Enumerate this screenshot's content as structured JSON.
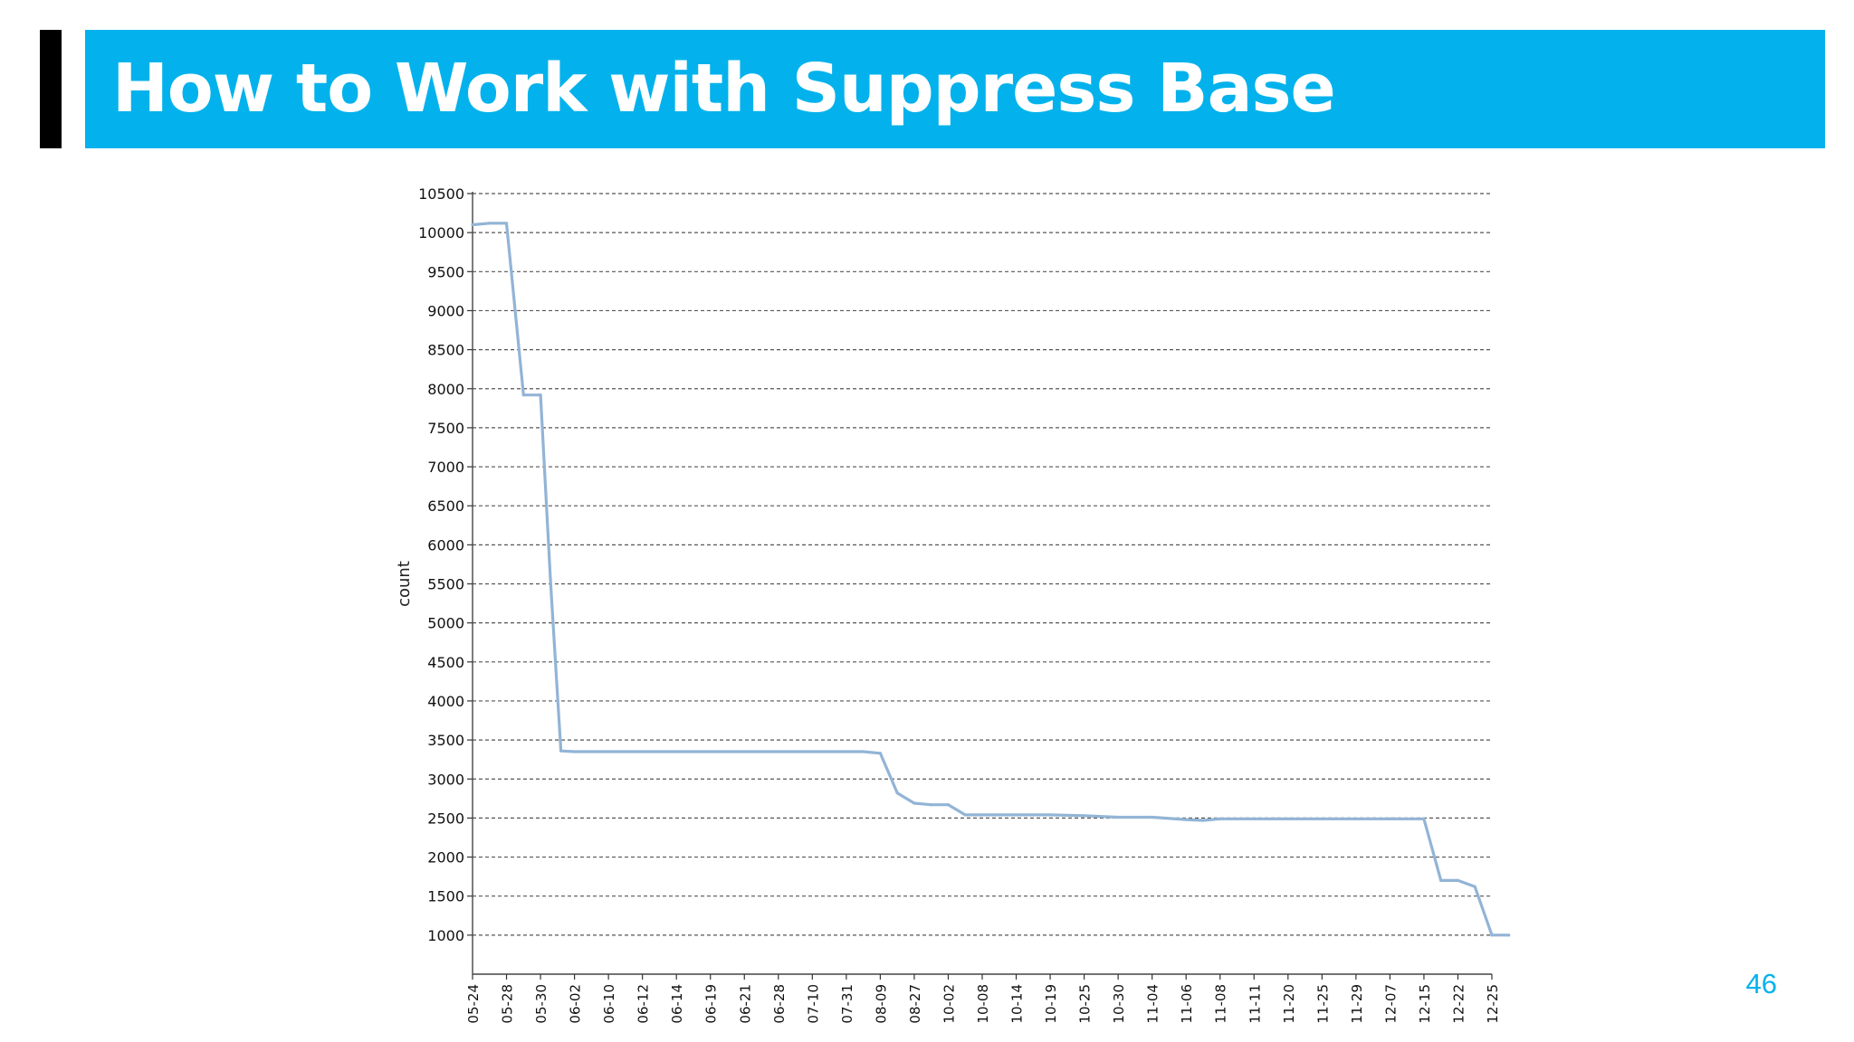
{
  "slide": {
    "title": "How to Work with Suppress Base",
    "page_number": "46"
  },
  "colors": {
    "banner": "#03b2ec",
    "accent_bar": "#000000",
    "line": "#92b4d6",
    "grid": "#555555"
  },
  "chart_data": {
    "type": "line",
    "title": "",
    "xlabel": "",
    "ylabel": "count",
    "ylim": [
      500,
      10500
    ],
    "yticks": [
      1000,
      1500,
      2000,
      2500,
      3000,
      3500,
      4000,
      4500,
      5000,
      5500,
      6000,
      6500,
      7000,
      7500,
      8000,
      8500,
      9000,
      9500,
      10000,
      10500
    ],
    "grid": "horizontal-dashed",
    "legend": "none",
    "categories": [
      "05-24",
      "05-28",
      "05-30",
      "06-02",
      "06-10",
      "06-12",
      "06-14",
      "06-19",
      "06-21",
      "06-28",
      "07-10",
      "07-31",
      "08-09",
      "08-27",
      "10-02",
      "10-08",
      "10-14",
      "10-19",
      "10-25",
      "10-30",
      "11-04",
      "11-06",
      "11-08",
      "11-11",
      "11-20",
      "11-25",
      "11-29",
      "12-07",
      "12-15",
      "12-22",
      "12-25"
    ],
    "series": [
      {
        "name": "",
        "x": [
          0,
          0.5,
          1,
          1.5,
          2,
          2.3,
          2.6,
          3,
          3.5,
          4,
          4.5,
          5,
          6,
          7,
          8,
          9,
          10,
          11,
          11.5,
          12,
          12.5,
          13,
          13.5,
          14,
          14.5,
          15,
          16,
          17,
          18,
          19,
          20,
          21,
          21.5,
          22,
          23,
          24,
          25,
          26,
          27,
          28,
          28.5,
          29,
          29.5,
          30,
          30.5
        ],
        "values": [
          10100,
          10120,
          10120,
          7920,
          7920,
          5500,
          3360,
          3350,
          3350,
          3350,
          3350,
          3350,
          3350,
          3350,
          3350,
          3350,
          3350,
          3350,
          3350,
          3330,
          2820,
          2690,
          2670,
          2670,
          2540,
          2540,
          2540,
          2540,
          2530,
          2510,
          2510,
          2480,
          2470,
          2490,
          2490,
          2490,
          2490,
          2490,
          2490,
          2490,
          1700,
          1700,
          1620,
          1000,
          1000
        ]
      }
    ]
  }
}
